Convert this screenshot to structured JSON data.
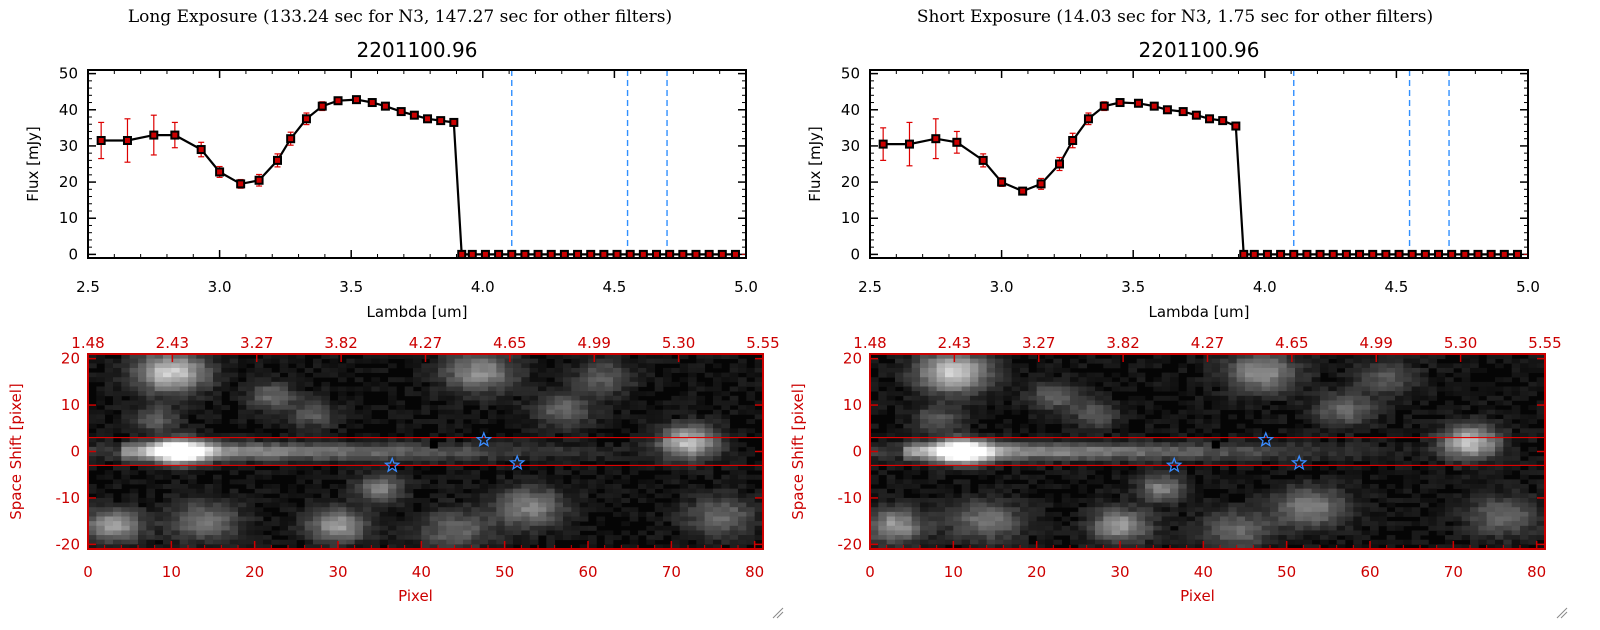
{
  "panels": [
    {
      "header": "Long Exposure (133.24 sec for N3, 147.27 sec for other filters)",
      "chart_data": {
        "type": "line",
        "title": "2201100.96",
        "xlabel": "Lambda [um]",
        "ylabel": "Flux [mJy]",
        "xlim": [
          2.5,
          5.0
        ],
        "ylim": [
          -1,
          51
        ],
        "xticks": [
          "2.5",
          "3.0",
          "3.5",
          "4.0",
          "4.5",
          "5.0"
        ],
        "yticks": [
          "0",
          "10",
          "20",
          "30",
          "40",
          "50"
        ],
        "series": [
          {
            "x": [
              2.55,
              2.65,
              2.75,
              2.83,
              2.93,
              3.0,
              3.08,
              3.15,
              3.22,
              3.27,
              3.33,
              3.39,
              3.45,
              3.52,
              3.58,
              3.63,
              3.69,
              3.74,
              3.79,
              3.84,
              3.89,
              3.92,
              3.96,
              4.01,
              4.06,
              4.11,
              4.16,
              4.21,
              4.26,
              4.31,
              4.36,
              4.41,
              4.46,
              4.51,
              4.56,
              4.61,
              4.66,
              4.71,
              4.76,
              4.81,
              4.86,
              4.91,
              4.96
            ],
            "y": [
              31.5,
              31.5,
              33,
              33,
              29,
              22.8,
              19.5,
              20.5,
              26,
              32,
              37.5,
              41,
              42.5,
              42.8,
              42,
              41,
              39.5,
              38.5,
              37.5,
              37,
              36.5,
              0,
              0,
              0,
              0,
              0,
              0,
              0,
              0,
              0,
              0,
              0,
              0,
              0,
              0,
              0,
              0,
              0,
              0,
              0,
              0,
              0,
              0
            ],
            "err": [
              5,
              6,
              5.5,
              3.5,
              2,
              1.5,
              1.2,
              1.6,
              1.8,
              1.8,
              1.6,
              1.2,
              1,
              1,
              1,
              0.8,
              0.8,
              0.8,
              0.8,
              0.8,
              0.8,
              0,
              0,
              0,
              0,
              0,
              0,
              0,
              0,
              0,
              0,
              0,
              0,
              0,
              0,
              0,
              0,
              0,
              0,
              0,
              0,
              0,
              0
            ]
          }
        ],
        "vlines": [
          4.11,
          4.55,
          4.7
        ],
        "image_panel": {
          "top_ticks": [
            "1.48",
            "2.43",
            "3.27",
            "3.82",
            "4.27",
            "4.65",
            "4.99",
            "5.30",
            "5.55"
          ],
          "xlabel": "Pixel",
          "ylabel": "Space Shift [pixel]",
          "xlim": [
            0,
            81
          ],
          "ylim": [
            -21,
            21
          ],
          "xticks": [
            "0",
            "10",
            "20",
            "30",
            "40",
            "50",
            "60",
            "70",
            "80"
          ],
          "yticks": [
            "-20",
            "-10",
            "0",
            "10",
            "20"
          ],
          "hlines": [
            3,
            -3
          ],
          "star_markers": [
            {
              "x": 47.5,
              "y": 2.5
            },
            {
              "x": 36.5,
              "y": -3
            },
            {
              "x": 51.5,
              "y": -2.5
            }
          ],
          "square_marker": {
            "x": 41.5,
            "y": 1.5
          }
        }
      }
    },
    {
      "header": "Short Exposure (14.03 sec for N3, 1.75 sec for other filters)",
      "chart_data": {
        "type": "line",
        "title": "2201100.96",
        "xlabel": "Lambda [um]",
        "ylabel": "Flux [mJy]",
        "xlim": [
          2.5,
          5.0
        ],
        "ylim": [
          -1,
          51
        ],
        "xticks": [
          "2.5",
          "3.0",
          "3.5",
          "4.0",
          "4.5",
          "5.0"
        ],
        "yticks": [
          "0",
          "10",
          "20",
          "30",
          "40",
          "50"
        ],
        "series": [
          {
            "x": [
              2.55,
              2.65,
              2.75,
              2.83,
              2.93,
              3.0,
              3.08,
              3.15,
              3.22,
              3.27,
              3.33,
              3.39,
              3.45,
              3.52,
              3.58,
              3.63,
              3.69,
              3.74,
              3.79,
              3.84,
              3.89,
              3.92,
              3.96,
              4.01,
              4.06,
              4.11,
              4.16,
              4.21,
              4.26,
              4.31,
              4.36,
              4.41,
              4.46,
              4.51,
              4.56,
              4.61,
              4.66,
              4.71,
              4.76,
              4.81,
              4.86,
              4.91,
              4.96
            ],
            "y": [
              30.5,
              30.5,
              32,
              31,
              26,
              20,
              17.5,
              19.5,
              25,
              31.5,
              37.5,
              41,
              42,
              41.8,
              41,
              40,
              39.5,
              38.5,
              37.5,
              37,
              35.5,
              0,
              0,
              0,
              0,
              0,
              0,
              0,
              0,
              0,
              0,
              0,
              0,
              0,
              0,
              0,
              0,
              0,
              0,
              0,
              0,
              0,
              0
            ],
            "err": [
              4.5,
              6,
              5.5,
              3,
              1.8,
              1.2,
              1,
              1.5,
              1.8,
              2,
              1.6,
              1.2,
              1,
              1,
              1,
              0.8,
              0.8,
              0.8,
              0.8,
              0.8,
              0.8,
              0,
              0,
              0,
              0,
              0,
              0,
              0,
              0,
              0,
              0,
              0,
              0,
              0,
              0,
              0,
              0,
              0,
              0,
              0,
              0,
              0,
              0
            ]
          }
        ],
        "vlines": [
          4.11,
          4.55,
          4.7
        ],
        "image_panel": {
          "top_ticks": [
            "1.48",
            "2.43",
            "3.27",
            "3.82",
            "4.27",
            "4.65",
            "4.99",
            "5.30",
            "5.55"
          ],
          "xlabel": "Pixel",
          "ylabel": "Space Shift [pixel]",
          "xlim": [
            0,
            81
          ],
          "ylim": [
            -21,
            21
          ],
          "xticks": [
            "0",
            "10",
            "20",
            "30",
            "40",
            "50",
            "60",
            "70",
            "80"
          ],
          "yticks": [
            "-20",
            "-10",
            "0",
            "10",
            "20"
          ],
          "hlines": [
            3,
            -3
          ],
          "star_markers": [
            {
              "x": 47.5,
              "y": 2.5
            },
            {
              "x": 36.5,
              "y": -3
            },
            {
              "x": 51.5,
              "y": -2.5
            }
          ],
          "square_marker": {
            "x": 41.5,
            "y": 1.5
          }
        }
      }
    }
  ],
  "colors": {
    "line": "#000000",
    "marker": "#cc0000",
    "error_bar": "#dd0000",
    "vline": "#2f8fff",
    "image_axis": "#cc0000",
    "star": "#3a8cff",
    "zero_line": "#cc0000"
  }
}
